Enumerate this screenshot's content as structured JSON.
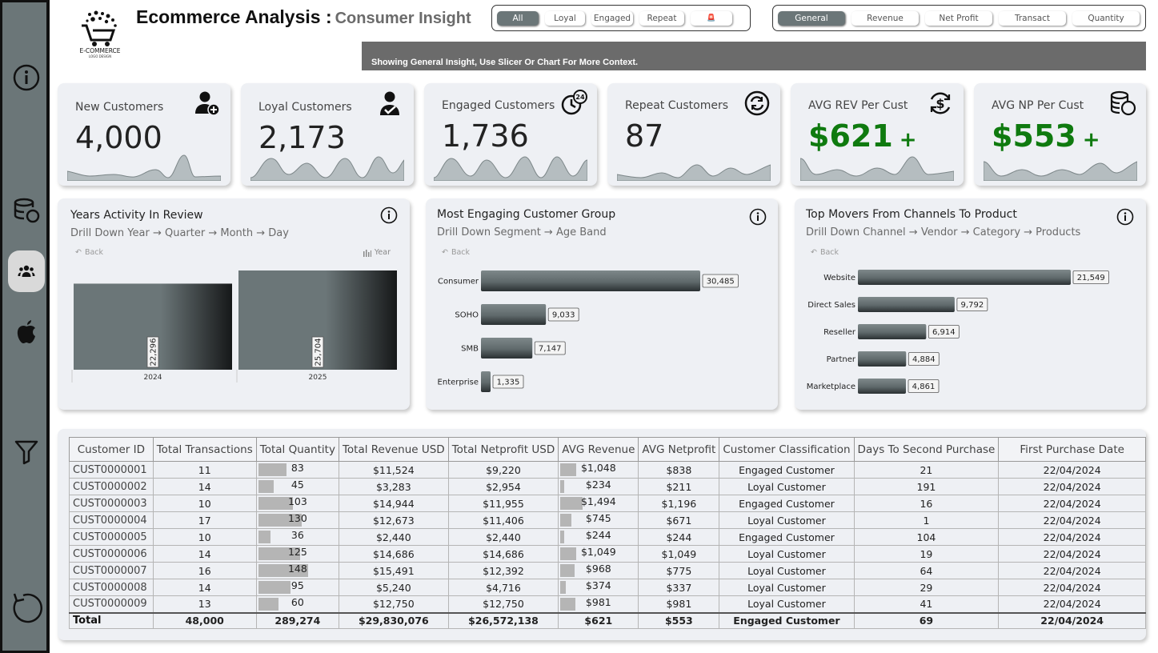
{
  "header": {
    "title": "Ecommerce Analysis :",
    "subtitle": "Consumer Insight",
    "logo_text": "E-COMMERCE",
    "logo_subtext": "LOGO DESIGN"
  },
  "customer_slicer": {
    "items": [
      {
        "label": "All",
        "selected": true
      },
      {
        "label": "Loyal",
        "selected": false
      },
      {
        "label": "Engaged",
        "selected": false
      },
      {
        "label": "Repeat",
        "selected": false
      },
      {
        "label": "🚨",
        "selected": false
      }
    ]
  },
  "metric_slicer": {
    "items": [
      {
        "label": "General",
        "selected": true
      },
      {
        "label": "Revenue",
        "selected": false
      },
      {
        "label": "Net Profit",
        "selected": false
      },
      {
        "label": "Transact",
        "selected": false
      },
      {
        "label": "Quantity",
        "selected": false
      }
    ]
  },
  "banner": {
    "text": "Showing General Insight, Use Slicer Or Chart For More Context."
  },
  "sidebar": {
    "items": [
      {
        "name": "info-icon"
      },
      {
        "name": "database-icon"
      },
      {
        "name": "users-icon",
        "active": true
      },
      {
        "name": "apple-icon"
      },
      {
        "name": "filter-icon"
      },
      {
        "name": "reset-icon"
      }
    ]
  },
  "kpis": [
    {
      "label": "New Customers",
      "value": "4,000",
      "icon": "user-add-icon"
    },
    {
      "label": "Loyal Customers",
      "value": "2,173",
      "icon": "user-check-icon"
    },
    {
      "label": "Engaged Customers",
      "value": "1,736",
      "icon": "clock-24-icon",
      "icon_text": "24"
    },
    {
      "label": "Repeat Customers",
      "value": "87",
      "icon": "refresh-icon"
    },
    {
      "label": "AVG REV Per Cust",
      "value": "$621",
      "suffix": "+",
      "icon": "dollar-cycle-icon"
    },
    {
      "label": "AVG NP Per Cust",
      "value": "$553",
      "suffix": "+",
      "icon": "coins-icon"
    }
  ],
  "years_panel": {
    "title": "Years Activity In Review",
    "subtitle": "Drill Down Year → Quarter → Month → Day",
    "back_label": "Back",
    "toggle_label": "Year"
  },
  "segment_panel": {
    "title": "Most Engaging Customer Group",
    "subtitle": "Drill Down Segment → Age Band",
    "back_label": "Back"
  },
  "channel_panel": {
    "title": "Top Movers From Channels To Product",
    "subtitle": "Drill Down Channel → Vendor → Category → Products",
    "back_label": "Back"
  },
  "chart_data": [
    {
      "type": "bar",
      "orientation": "vertical",
      "categories": [
        "2024",
        "2025"
      ],
      "values": [
        22296,
        25704
      ],
      "value_labels": [
        "22,296",
        "25,704"
      ],
      "title": "Years Activity In Review"
    },
    {
      "type": "bar",
      "orientation": "horizontal",
      "categories": [
        "Consumer",
        "SOHO",
        "SMB",
        "Enterprise"
      ],
      "values": [
        30485,
        9033,
        7147,
        1335
      ],
      "value_labels": [
        "30,485",
        "9,033",
        "7,147",
        "1,335"
      ],
      "title": "Most Engaging Customer Group"
    },
    {
      "type": "bar",
      "orientation": "horizontal",
      "categories": [
        "Website",
        "Direct Sales",
        "Reseller",
        "Partner",
        "Marketplace"
      ],
      "values": [
        21549,
        9792,
        6914,
        4884,
        4861
      ],
      "value_labels": [
        "21,549",
        "9,792",
        "6,914",
        "4,884",
        "4,861"
      ],
      "title": "Top Movers From Channels To Product"
    }
  ],
  "table": {
    "columns": [
      "Customer ID",
      "Total Transactions",
      "Total Quantity",
      "Total Revenue USD",
      "Total Netprofit USD",
      "AVG Revenue",
      "AVG Netprofit",
      "Customer Classification",
      "Days To Second Purchase",
      "First Purchase Date"
    ],
    "rows": [
      [
        "CUST0000001",
        "11",
        "83",
        "$11,524",
        "$9,220",
        "$1,048",
        "$838",
        "Engaged Customer",
        "21",
        "22/04/2024"
      ],
      [
        "CUST0000002",
        "14",
        "45",
        "$3,283",
        "$2,954",
        "$234",
        "$211",
        "Loyal Customer",
        "191",
        "22/04/2024"
      ],
      [
        "CUST0000003",
        "10",
        "103",
        "$14,944",
        "$11,955",
        "$1,494",
        "$1,196",
        "Engaged Customer",
        "16",
        "22/04/2024"
      ],
      [
        "CUST0000004",
        "17",
        "130",
        "$12,673",
        "$11,406",
        "$745",
        "$671",
        "Loyal Customer",
        "1",
        "22/04/2024"
      ],
      [
        "CUST0000005",
        "10",
        "36",
        "$2,440",
        "$2,440",
        "$244",
        "$244",
        "Engaged Customer",
        "104",
        "22/04/2024"
      ],
      [
        "CUST0000006",
        "14",
        "125",
        "$14,686",
        "$14,686",
        "$1,049",
        "$1,049",
        "Loyal Customer",
        "19",
        "22/04/2024"
      ],
      [
        "CUST0000007",
        "16",
        "148",
        "$15,491",
        "$12,392",
        "$968",
        "$775",
        "Loyal Customer",
        "64",
        "22/04/2024"
      ],
      [
        "CUST0000008",
        "14",
        "95",
        "$5,240",
        "$4,716",
        "$374",
        "$337",
        "Loyal Customer",
        "29",
        "22/04/2024"
      ],
      [
        "CUST0000009",
        "13",
        "60",
        "$12,750",
        "$12,750",
        "$981",
        "$981",
        "Loyal Customer",
        "41",
        "22/04/2024"
      ]
    ],
    "total": [
      "Total",
      "48,000",
      "289,274",
      "$29,830,076",
      "$26,572,138",
      "$621",
      "$553",
      "Engaged Customer",
      "69",
      "22/04/2024"
    ]
  },
  "colors": {
    "sidebar": "#6b7678",
    "bar": "#6b7678",
    "positive": "#0f7a0f",
    "banner": "#6b6b6b"
  }
}
